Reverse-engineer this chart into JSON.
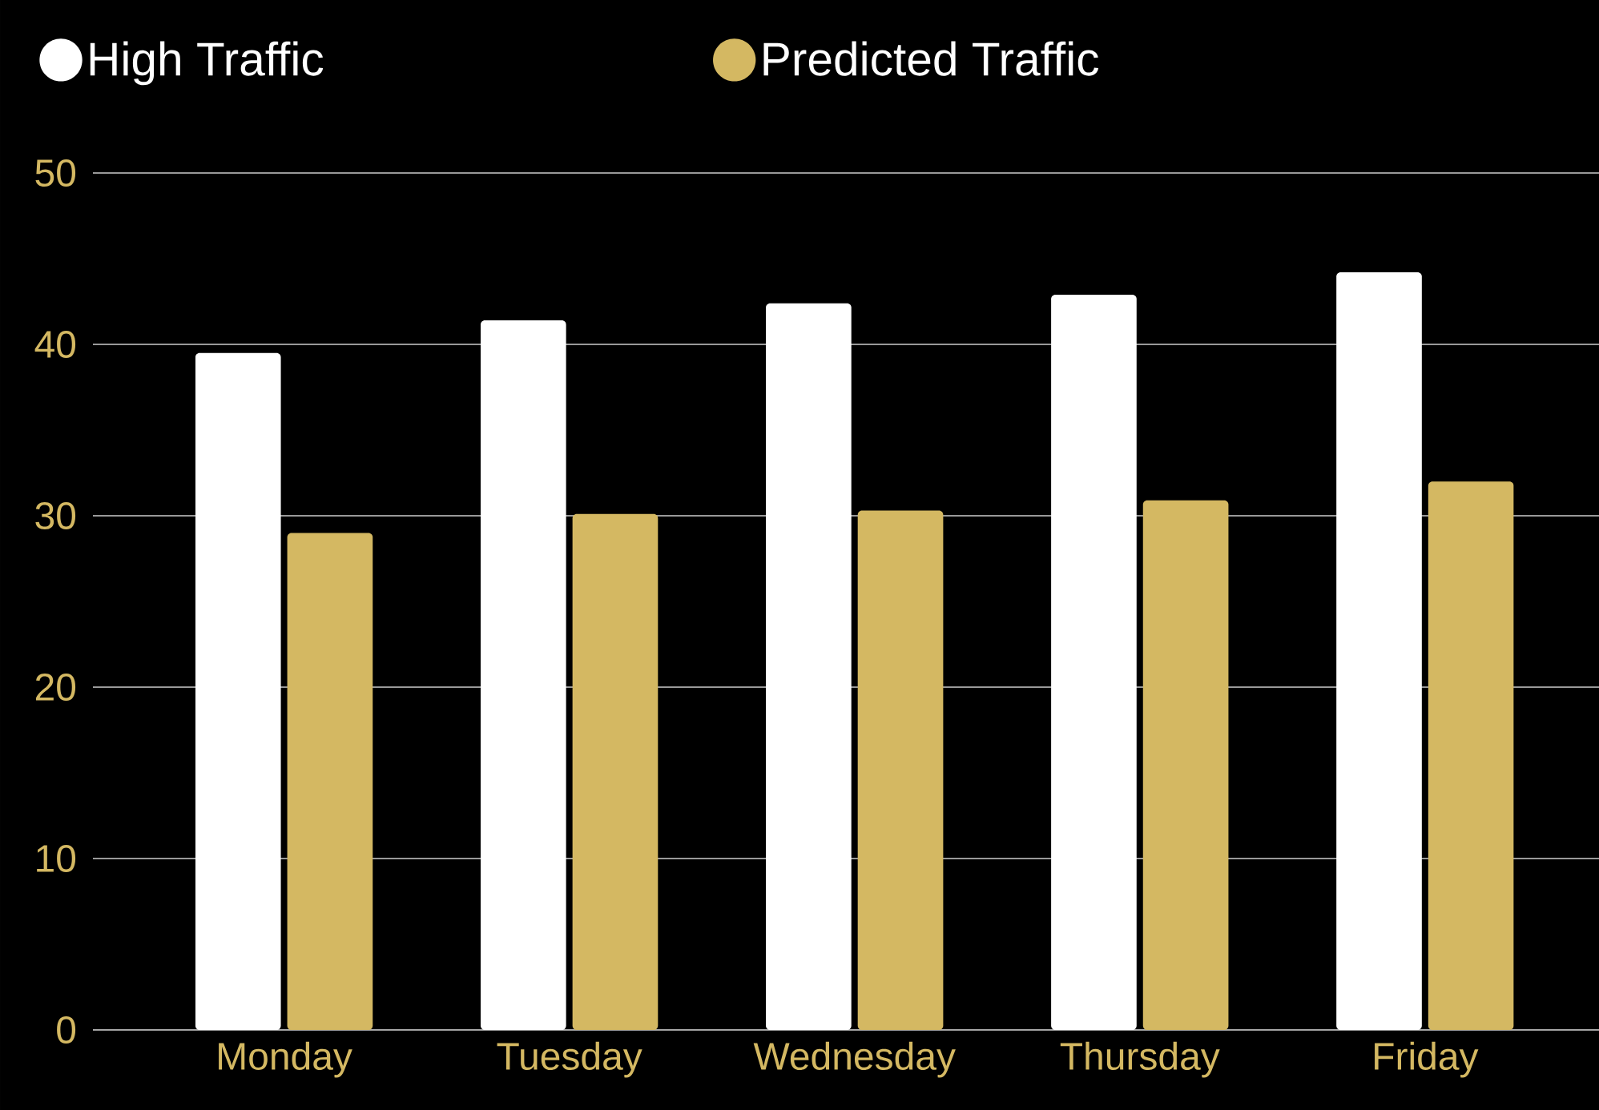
{
  "chart_data": {
    "type": "bar",
    "categories": [
      "Monday",
      "Tuesday",
      "Wednesday",
      "Thursday",
      "Friday"
    ],
    "series": [
      {
        "name": "High Traffic",
        "color": "#ffffff",
        "values": [
          39.5,
          41.4,
          42.4,
          42.9,
          44.2
        ]
      },
      {
        "name": "Predicted Traffic",
        "color": "#d4b862",
        "values": [
          29.0,
          30.1,
          30.3,
          30.9,
          32.0
        ]
      }
    ],
    "ylim": [
      0,
      50
    ],
    "yticks": [
      0,
      10,
      20,
      30,
      40,
      50
    ],
    "grid": "y",
    "legend": "top",
    "marker": "circle"
  }
}
